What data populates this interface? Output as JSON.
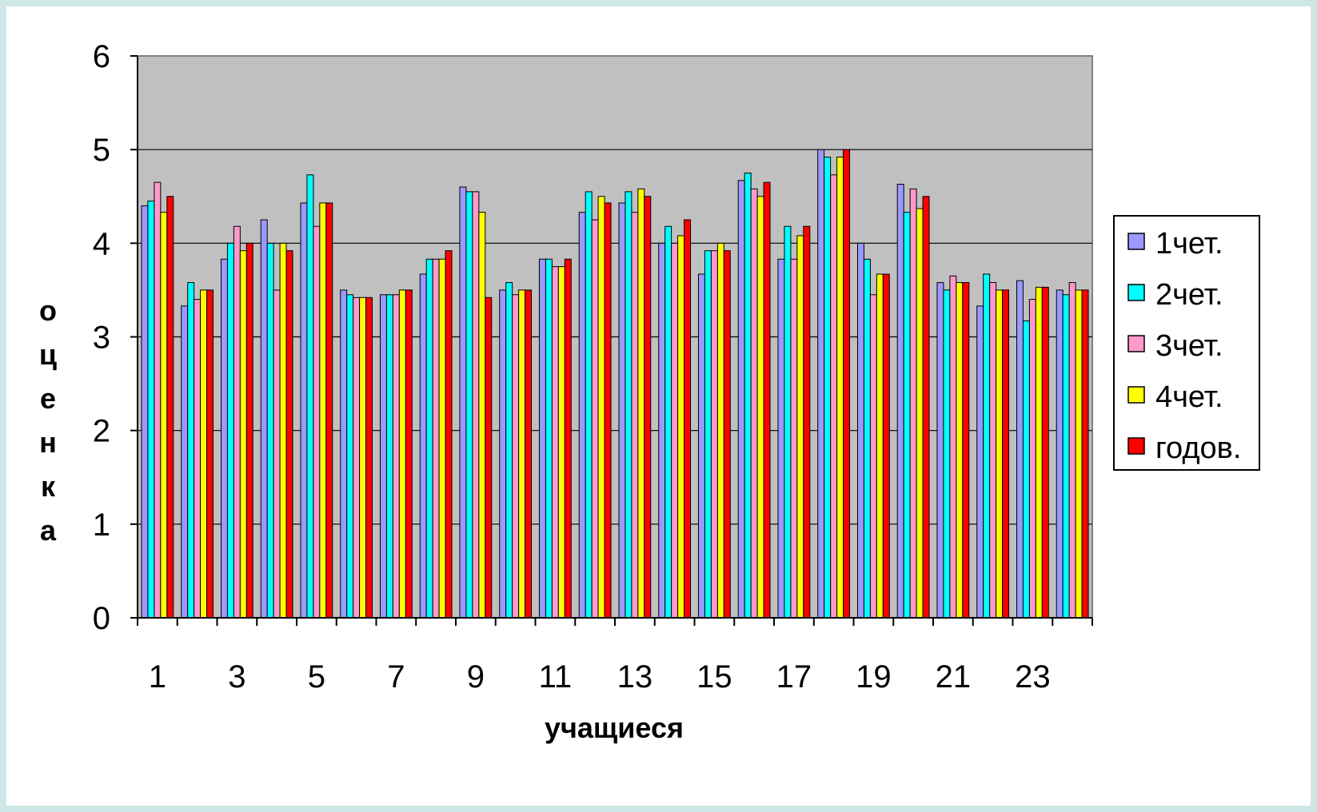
{
  "chart_data": {
    "type": "bar",
    "title": "",
    "xlabel": "учащиеся",
    "ylabel": "оценка",
    "ylim": [
      0,
      6
    ],
    "yticks": [
      0,
      1,
      2,
      3,
      4,
      5,
      6
    ],
    "grid": true,
    "legend_position": "right",
    "categories": [
      "1",
      "2",
      "3",
      "4",
      "5",
      "6",
      "7",
      "8",
      "9",
      "10",
      "11",
      "12",
      "13",
      "14",
      "15",
      "16",
      "17",
      "18",
      "19",
      "20",
      "21",
      "22",
      "23",
      "24"
    ],
    "x_tick_labels": [
      "1",
      "3",
      "5",
      "7",
      "9",
      "11",
      "13",
      "15",
      "17",
      "19",
      "21",
      "23"
    ],
    "series": [
      {
        "name": "1чет.",
        "color": "#9999ff",
        "values": [
          4.4,
          3.33,
          3.83,
          4.25,
          4.43,
          3.5,
          3.45,
          3.67,
          4.6,
          3.5,
          3.83,
          4.33,
          4.43,
          4.0,
          3.67,
          4.67,
          3.83,
          5.0,
          4.0,
          4.63,
          3.58,
          3.33,
          3.6,
          3.5
        ]
      },
      {
        "name": "2чет.",
        "color": "#00ffff",
        "values": [
          4.45,
          3.58,
          4.0,
          4.0,
          4.73,
          3.45,
          3.45,
          3.83,
          4.55,
          3.58,
          3.83,
          4.55,
          4.55,
          4.18,
          3.92,
          4.75,
          4.18,
          4.92,
          3.83,
          4.33,
          3.5,
          3.67,
          3.17,
          3.45
        ]
      },
      {
        "name": "3чет.",
        "color": "#ff99cc",
        "values": [
          4.65,
          3.4,
          4.18,
          3.5,
          4.18,
          3.42,
          3.45,
          3.83,
          4.55,
          3.45,
          3.75,
          4.25,
          4.33,
          4.0,
          3.92,
          4.58,
          3.83,
          4.73,
          3.45,
          4.58,
          3.65,
          3.58,
          3.4,
          3.58
        ]
      },
      {
        "name": "4чет.",
        "color": "#ffff00",
        "values": [
          4.33,
          3.5,
          3.92,
          4.0,
          4.43,
          3.42,
          3.5,
          3.83,
          4.33,
          3.5,
          3.75,
          4.5,
          4.58,
          4.08,
          4.0,
          4.5,
          4.08,
          4.92,
          3.67,
          4.37,
          3.58,
          3.5,
          3.53,
          3.5
        ]
      },
      {
        "name": "годов.",
        "color": "#ff0000",
        "values": [
          4.5,
          3.5,
          4.0,
          3.92,
          4.43,
          3.42,
          3.5,
          3.92,
          3.42,
          3.5,
          3.83,
          4.43,
          4.5,
          4.25,
          3.92,
          4.65,
          4.18,
          5.0,
          3.67,
          4.5,
          3.58,
          3.5,
          3.53,
          3.5
        ]
      }
    ]
  }
}
